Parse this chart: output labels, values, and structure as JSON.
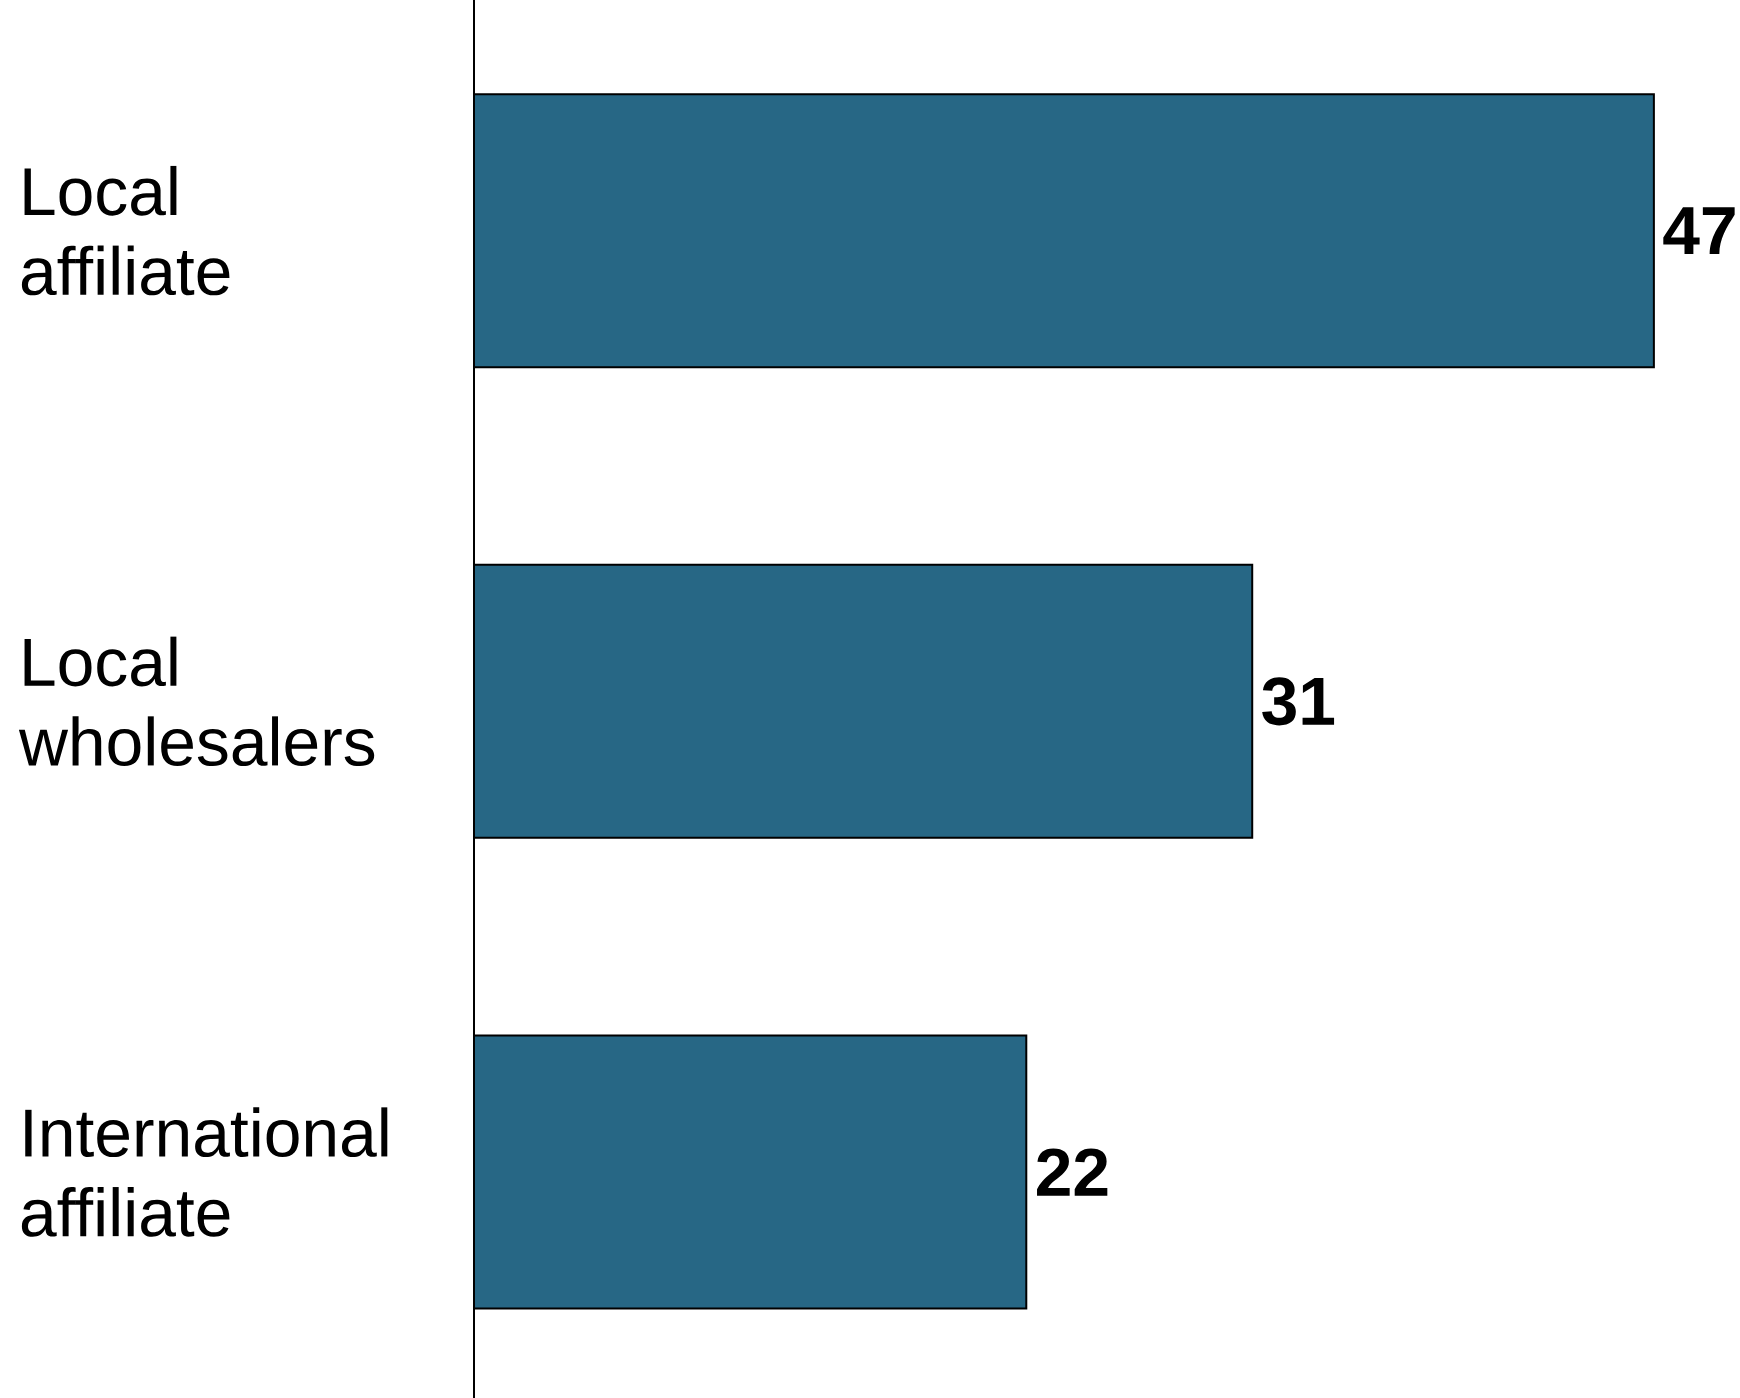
{
  "chart_data": {
    "type": "bar",
    "orientation": "horizontal",
    "categories": [
      "Local affiliate",
      "Local wholesalers",
      "International affiliate"
    ],
    "values": [
      47,
      31,
      22
    ],
    "color": "#276785",
    "data_labels": true
  }
}
